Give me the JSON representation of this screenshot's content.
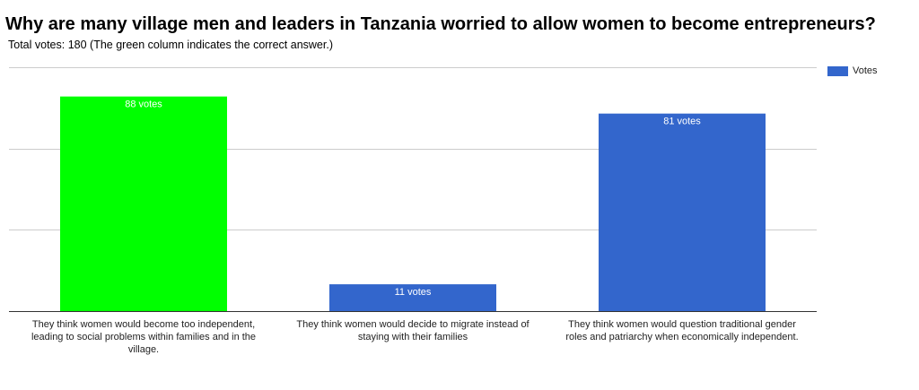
{
  "chart_data": {
    "type": "bar",
    "title": "Why are many village men and leaders in Tanzania worried to allow women to become entrepreneurs?",
    "subtitle": "Total votes: 180 (The green column indicates the correct answer.)",
    "categories": [
      "They think women would become too independent, leading to social problems within families and in the village.",
      "They think women would decide to migrate instead of staying with their families",
      "They think women would question traditional gender roles and patriarchy when economically independent."
    ],
    "series": [
      {
        "name": "Votes",
        "values": [
          88,
          11,
          81
        ]
      }
    ],
    "data_labels": [
      "88 votes",
      "11 votes",
      "81 votes"
    ],
    "correct_index": 0,
    "colors": {
      "series": "#3366cc",
      "correct": "#00ff00",
      "grid": "#cccccc",
      "baseline": "#333333",
      "label": "#ffffff"
    },
    "ylim": [
      0,
      100
    ],
    "gridlines": [
      0,
      33.333,
      66.667,
      100
    ],
    "xlabel": "",
    "ylabel": "",
    "legend_position": "top-right",
    "grid": true
  }
}
